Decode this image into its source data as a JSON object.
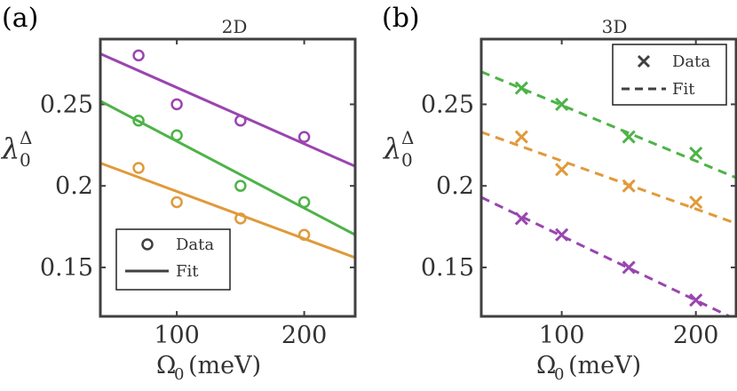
{
  "colors": {
    "purple": "#9a45b0",
    "green": "#4db347",
    "orange": "#e09a3a",
    "axis": "#404040",
    "text": "#333333"
  },
  "chart_data": [
    {
      "type": "scatter",
      "panel_label": "(a)",
      "title": "2D",
      "xlabel": "Ω₀ (meV)",
      "ylabel": "λ₀^Δ",
      "ylabel_main": "λ",
      "ylabel_sub": "0",
      "ylabel_sup": "Δ",
      "xlabel_main": "Ω",
      "xlabel_sub": "0",
      "xlabel_unit": "(meV)",
      "xlim": [
        40,
        240
      ],
      "ylim": [
        0.12,
        0.29
      ],
      "xticks": [
        100,
        200
      ],
      "yticks": [
        0.15,
        0.2,
        0.25
      ],
      "ytick_labels": [
        "0.15",
        "0.2",
        "0.25"
      ],
      "xtick_labels": [
        "100",
        "200"
      ],
      "marker": "circle",
      "fit_style": "solid",
      "legend": {
        "position": "bottom-left",
        "entries": [
          "Data",
          "Fit"
        ]
      },
      "series": [
        {
          "name": "purple",
          "color": "#9a45b0",
          "x": [
            70,
            100,
            150,
            200
          ],
          "y": [
            0.28,
            0.25,
            0.24,
            0.23
          ],
          "fit": {
            "x": [
              40,
              240
            ],
            "y": [
              0.281,
              0.212
            ]
          }
        },
        {
          "name": "green",
          "color": "#4db347",
          "x": [
            70,
            100,
            150,
            200
          ],
          "y": [
            0.24,
            0.231,
            0.2,
            0.19
          ],
          "fit": {
            "x": [
              40,
              240
            ],
            "y": [
              0.252,
              0.17
            ]
          }
        },
        {
          "name": "orange",
          "color": "#e09a3a",
          "x": [
            70,
            100,
            150,
            200
          ],
          "y": [
            0.211,
            0.19,
            0.18,
            0.17
          ],
          "fit": {
            "x": [
              40,
              240
            ],
            "y": [
              0.214,
              0.156
            ]
          }
        }
      ]
    },
    {
      "type": "scatter",
      "panel_label": "(b)",
      "title": "3D",
      "xlabel": "Ω₀ (meV)",
      "ylabel": "λ₀^Δ",
      "ylabel_main": "λ",
      "ylabel_sub": "0",
      "ylabel_sup": "Δ",
      "xlabel_main": "Ω",
      "xlabel_sub": "0",
      "xlabel_unit": "(meV)",
      "xlim": [
        40,
        230
      ],
      "ylim": [
        0.12,
        0.29
      ],
      "xticks": [
        100,
        200
      ],
      "yticks": [
        0.15,
        0.2,
        0.25
      ],
      "ytick_labels": [
        "0.15",
        "0.2",
        "0.25"
      ],
      "xtick_labels": [
        "100",
        "200"
      ],
      "marker": "x",
      "fit_style": "dashed",
      "legend": {
        "position": "top-right",
        "entries": [
          "Data",
          "Fit"
        ]
      },
      "series": [
        {
          "name": "green",
          "color": "#4db347",
          "x": [
            70,
            100,
            150,
            200
          ],
          "y": [
            0.26,
            0.25,
            0.23,
            0.22
          ],
          "fit": {
            "x": [
              40,
              230
            ],
            "y": [
              0.27,
              0.205
            ]
          }
        },
        {
          "name": "orange",
          "color": "#e09a3a",
          "x": [
            70,
            100,
            150,
            200
          ],
          "y": [
            0.23,
            0.21,
            0.2,
            0.19
          ],
          "fit": {
            "x": [
              40,
              230
            ],
            "y": [
              0.233,
              0.177
            ]
          }
        },
        {
          "name": "purple",
          "color": "#9a45b0",
          "x": [
            70,
            100,
            150,
            200
          ],
          "y": [
            0.18,
            0.17,
            0.15,
            0.13
          ],
          "fit": {
            "x": [
              40,
              230
            ],
            "y": [
              0.193,
              0.118
            ]
          }
        }
      ]
    }
  ]
}
